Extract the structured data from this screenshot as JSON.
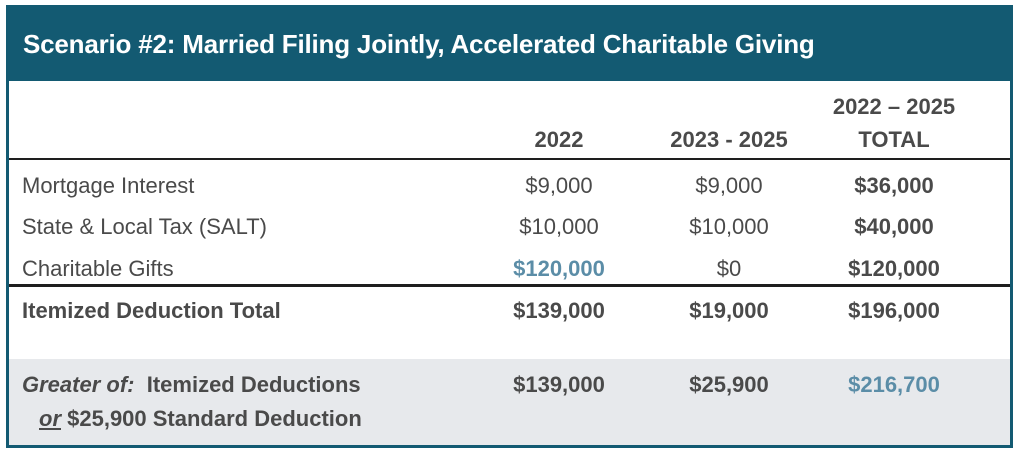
{
  "title": "Scenario #2: Married Filing Jointly, Accelerated Charitable Giving",
  "headers": {
    "col1": "2022",
    "col2": "2023 - 2025",
    "col3_line1": "2022 – 2025",
    "col3_line2": "TOTAL"
  },
  "rows": [
    {
      "label": "Mortgage Interest",
      "c1": "$9,000",
      "c2": "$9,000",
      "c3": "$36,000"
    },
    {
      "label": "State & Local Tax (SALT)",
      "c1": "$10,000",
      "c2": "$10,000",
      "c3": "$40,000"
    },
    {
      "label": "Charitable Gifts",
      "c1": "$120,000",
      "c2": "$0",
      "c3": "$120,000"
    }
  ],
  "total": {
    "label": "Itemized Deduction Total",
    "c1": "$139,000",
    "c2": "$19,000",
    "c3": "$196,000"
  },
  "greater": {
    "label_italic": "Greater of:",
    "label_rest": "Itemized Deductions",
    "label_or": "or",
    "label_line2": "$25,900 Standard Deduction",
    "c1": "$139,000",
    "c2": "$25,900",
    "c3": "$216,700"
  },
  "colors": {
    "header_bg": "#135a72",
    "accent": "#5b8da7",
    "band": "#e7e9ec"
  }
}
